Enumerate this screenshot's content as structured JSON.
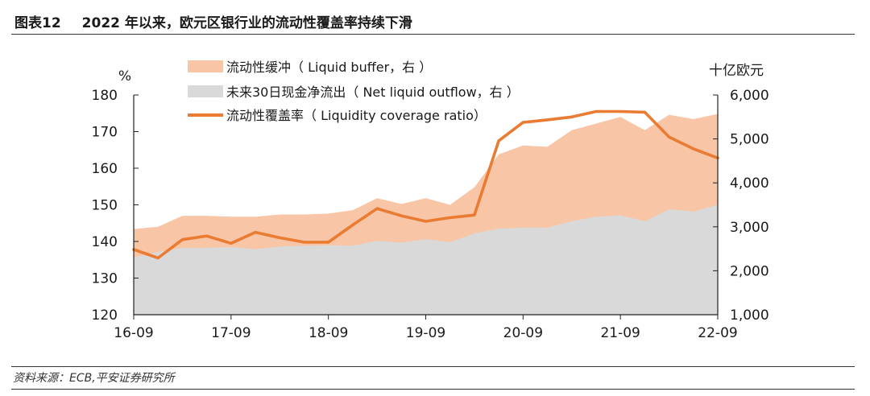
{
  "figure": {
    "number": "图表12",
    "title": "2022 年以来，欧元区银行业的流动性覆盖率持续下滑",
    "source": "资料来源：ECB,平安证券研究所"
  },
  "colors": {
    "liquid_buffer": "#f8c6a6",
    "net_outflow": "#d9d9d9",
    "lcr": "#ea7b33"
  },
  "chart_data": {
    "type": "area",
    "x": [
      "16-09",
      "16-12",
      "17-03",
      "17-06",
      "17-09",
      "17-12",
      "18-03",
      "18-06",
      "18-09",
      "18-12",
      "19-03",
      "19-06",
      "19-09",
      "19-12",
      "20-03",
      "20-06",
      "20-09",
      "20-12",
      "21-03",
      "21-06",
      "21-09",
      "21-12",
      "22-03",
      "22-06",
      "22-09"
    ],
    "x_tick_labels": [
      "16-09",
      "17-09",
      "18-09",
      "19-09",
      "20-09",
      "21-09",
      "22-09"
    ],
    "left_axis": {
      "unit": "%",
      "ticks": [
        120,
        130,
        140,
        150,
        160,
        170,
        180
      ],
      "ylim": [
        120,
        180
      ]
    },
    "right_axis": {
      "unit": "十亿欧元",
      "ticks": [
        "1,000",
        "2,000",
        "3,000",
        "4,000",
        "5,000",
        "6,000"
      ],
      "ylim": [
        1000,
        6000
      ]
    },
    "series": [
      {
        "name": "流动性缓冲（ Liquid buffer，右 ）",
        "axis": "right",
        "kind": "area",
        "values": [
          2950,
          3000,
          3250,
          3250,
          3230,
          3230,
          3280,
          3280,
          3300,
          3380,
          3650,
          3520,
          3650,
          3500,
          3900,
          4650,
          4850,
          4820,
          5200,
          5350,
          5500,
          5200,
          5550,
          5450,
          5570
        ]
      },
      {
        "name": "未来30日现金净流出（ Net liquid outflow，右 ）",
        "axis": "right",
        "kind": "area",
        "values": [
          2300,
          2430,
          2520,
          2520,
          2540,
          2490,
          2550,
          2570,
          2580,
          2570,
          2680,
          2640,
          2720,
          2650,
          2850,
          2960,
          2980,
          2980,
          3130,
          3230,
          3260,
          3130,
          3400,
          3350,
          3500
        ]
      },
      {
        "name": "流动性覆盖率（ Liquidity coverage ratio）",
        "axis": "left",
        "kind": "line",
        "values": [
          137.8,
          135.5,
          140.5,
          141.5,
          139.5,
          142.5,
          141.0,
          139.8,
          139.8,
          144.5,
          149.0,
          147.0,
          145.5,
          146.5,
          147.2,
          167.5,
          172.5,
          173.2,
          174.0,
          175.5,
          175.5,
          175.3,
          168.5,
          165.3,
          162.8
        ]
      }
    ],
    "legend_position": "top-left",
    "grid": false
  }
}
